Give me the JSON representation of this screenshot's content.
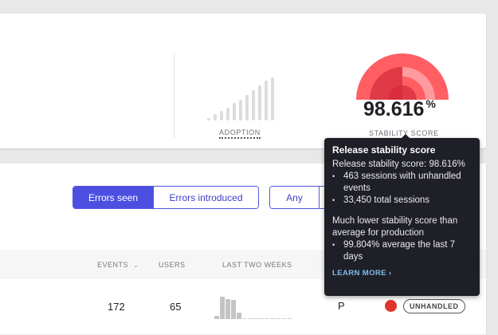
{
  "metrics": {
    "adoption": {
      "label": "ADOPTION",
      "bars": [
        3,
        8,
        12,
        16,
        22,
        26,
        32,
        38,
        44,
        50,
        54
      ]
    },
    "stability": {
      "label": "STABILITY SCORE",
      "value": "98.616",
      "unit": "%",
      "gauge_colors": {
        "outer": "#ff5f63",
        "inner_dark": "#e03a47",
        "inner_light": "#ff9aa0"
      }
    }
  },
  "filters": {
    "error_mode": [
      {
        "label": "Errors seen",
        "active": true
      },
      {
        "label": "Errors introduced",
        "active": false
      }
    ],
    "handled": [
      {
        "label": "Any",
        "active": false
      },
      {
        "label": "",
        "active": false
      }
    ]
  },
  "table": {
    "columns": {
      "events": "EVENTS",
      "users": "USERS",
      "last_two_weeks": "LAST TWO WEEKS"
    },
    "rows": [
      {
        "events": "172",
        "users": "65",
        "sparkline": [
          4,
          28,
          25,
          24,
          8,
          0,
          0,
          0,
          0,
          0,
          0,
          0,
          0,
          0
        ],
        "stage": "P",
        "status_color": "#e0332a",
        "badge": "UNHANDLED"
      }
    ]
  },
  "tooltip": {
    "title": "Release stability score",
    "summary": "Release stability score: 98.616%",
    "bullets": [
      "463 sessions with unhandled events",
      "33,450 total sessions"
    ],
    "comparison": "Much lower stability score than average for production",
    "comparison_bullets": [
      "99.804% average the last 7 days"
    ],
    "link": "LEARN MORE ›"
  },
  "colors": {
    "accent": "#4c4fe0",
    "tooltip_bg": "#1f2027",
    "link": "#7fbdf0"
  }
}
